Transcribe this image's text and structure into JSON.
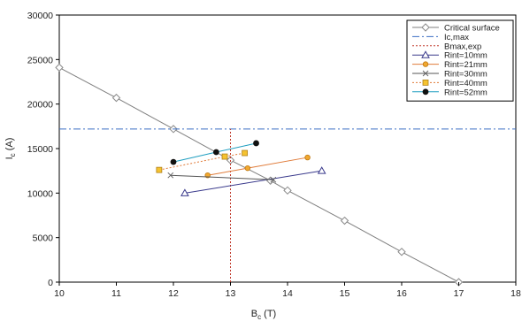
{
  "chart_data": {
    "type": "line",
    "xlabel": "B",
    "xlabel_sub": "c",
    "xlabel_unit": " (T)",
    "ylabel": "I",
    "ylabel_sub": "c",
    "ylabel_unit": " (A)",
    "xlim": [
      10,
      18
    ],
    "ylim": [
      0,
      30000
    ],
    "x_ticks": [
      10,
      11,
      12,
      13,
      14,
      15,
      16,
      17,
      18
    ],
    "y_ticks": [
      0,
      5000,
      10000,
      15000,
      20000,
      25000,
      30000
    ],
    "grid": false,
    "legend_position": "top-right",
    "series": [
      {
        "name": "Critical surface",
        "color": "#7f7f7f",
        "dash": "",
        "marker": "diamond-open",
        "x": [
          10,
          11,
          12,
          13,
          13.7,
          14,
          15,
          16,
          17
        ],
        "y": [
          24100,
          20700,
          17200,
          13700,
          11400,
          10300,
          6900,
          3400,
          0
        ]
      },
      {
        "name": "Ic,max",
        "color": "#3b6fc4",
        "dash": "8,3,2,3",
        "marker": "none",
        "x": [
          10,
          18
        ],
        "y": [
          17200,
          17200
        ]
      },
      {
        "name": "Bmax,exp",
        "color": "#c0392b",
        "dash": "2,2",
        "marker": "none",
        "x": [
          13,
          13
        ],
        "y": [
          0,
          17200
        ]
      },
      {
        "name": "Rint=10mm",
        "color": "#3a3a8c",
        "dash": "",
        "marker": "triangle-open",
        "x": [
          12.2,
          14.6
        ],
        "y": [
          10000,
          12500
        ]
      },
      {
        "name": "Rint=21mm",
        "color": "#e07b39",
        "dash": "",
        "marker": "circle-orange",
        "x": [
          12.6,
          13.3,
          14.35
        ],
        "y": [
          12000,
          12800,
          14000
        ]
      },
      {
        "name": "Rint=30mm",
        "color": "#555555",
        "dash": "",
        "marker": "cross",
        "x": [
          11.95,
          13.75
        ],
        "y": [
          12000,
          11500
        ]
      },
      {
        "name": "Rint=40mm",
        "color": "#e07b39",
        "dash": "2,2",
        "marker": "square-yellow",
        "x": [
          11.75,
          12.9,
          13.25
        ],
        "y": [
          12600,
          14100,
          14500
        ]
      },
      {
        "name": "Rint=52mm",
        "color": "#1f9ec0",
        "dash": "",
        "marker": "circle-black",
        "x": [
          12,
          12.75,
          13.45
        ],
        "y": [
          13500,
          14600,
          15600
        ]
      }
    ]
  }
}
